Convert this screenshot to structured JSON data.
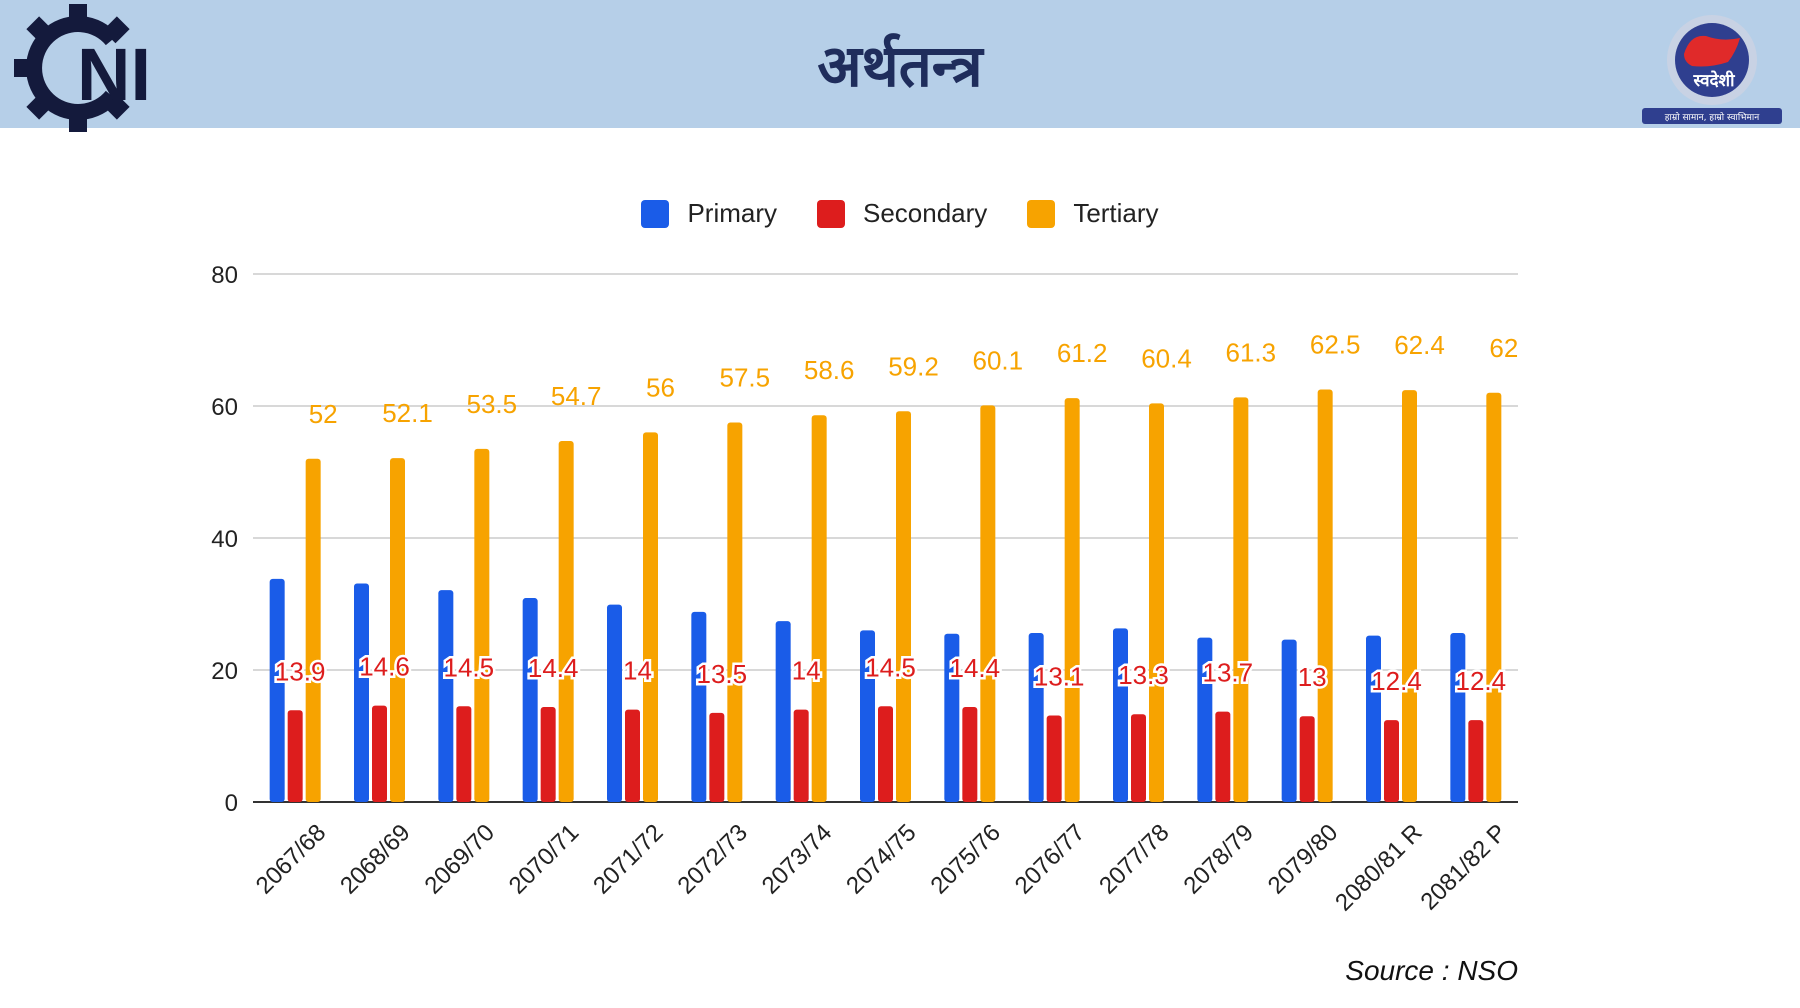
{
  "header": {
    "title": "अर्थतन्त्र",
    "logo_left_text": "NI",
    "logo_right_text": "स्वदेशी",
    "logo_right_tagline": "हाम्रो सामान, हाम्रो स्वाभिमान"
  },
  "source": "Source : NSO",
  "colors": {
    "primary": "#1a5ce8",
    "secondary": "#dd1d1d",
    "tertiary": "#f7a300",
    "header_bg": "#b6cfe8",
    "title": "#1f2d5c"
  },
  "chart_data": {
    "type": "bar",
    "categories": [
      "2067/68",
      "2068/69",
      "2069/70",
      "2070/71",
      "2071/72",
      "2072/73",
      "2073/74",
      "2074/75",
      "2075/76",
      "2076/77",
      "2077/78",
      "2078/79",
      "2079/80",
      "2080/81 R",
      "2081/82 P"
    ],
    "series": [
      {
        "name": "Primary",
        "color": "#1a5ce8",
        "values": [
          33.8,
          33.1,
          32.1,
          30.9,
          29.9,
          28.8,
          27.4,
          26.0,
          25.5,
          25.6,
          26.3,
          24.9,
          24.6,
          25.2,
          25.6
        ],
        "show_labels": false
      },
      {
        "name": "Secondary",
        "color": "#dd1d1d",
        "values": [
          13.9,
          14.6,
          14.5,
          14.4,
          14.0,
          13.5,
          14.0,
          14.5,
          14.4,
          13.1,
          13.3,
          13.7,
          13.0,
          12.4,
          12.4
        ],
        "show_labels": true
      },
      {
        "name": "Tertiary",
        "color": "#f7a300",
        "values": [
          52,
          52.1,
          53.5,
          54.7,
          56,
          57.5,
          58.6,
          59.2,
          60.1,
          61.2,
          60.4,
          61.3,
          62.5,
          62.4,
          62
        ],
        "show_labels": true
      }
    ],
    "ylim": [
      0,
      80
    ],
    "yticks": [
      0,
      20,
      40,
      60,
      80
    ],
    "grid": true,
    "legend": "top-center",
    "xlabel": "",
    "ylabel": ""
  }
}
